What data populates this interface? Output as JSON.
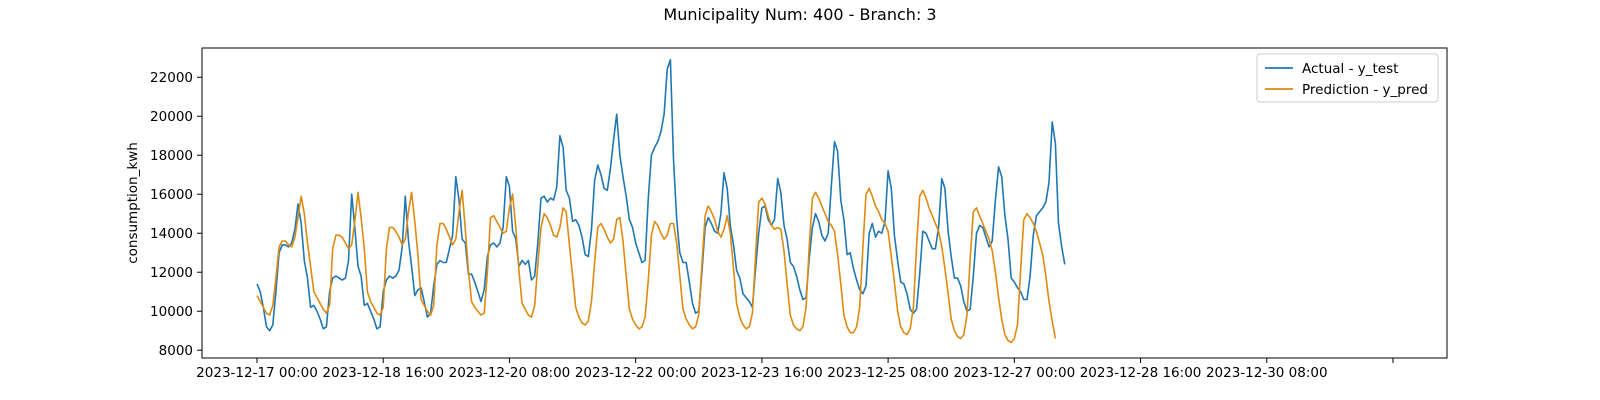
{
  "title": "Municipality Num: 400 - Branch: 3",
  "chart_data": {
    "type": "line",
    "title": "Municipality Num: 400 - Branch: 3",
    "xlabel": "",
    "ylabel": "consumption_kwh",
    "ylim": [
      7600,
      23500
    ],
    "yticks": [
      8000,
      10000,
      12000,
      14000,
      16000,
      18000,
      20000,
      22000
    ],
    "xticks": [
      "2023-12-17 00:00",
      "2023-12-18 16:00",
      "2023-12-20 08:00",
      "2023-12-22 00:00",
      "2023-12-23 16:00",
      "2023-12-25 08:00",
      "2023-12-27 00:00",
      "2023-12-28 16:00",
      "2023-12-30 08:00",
      ""
    ],
    "grid": false,
    "legend_position": "top-right",
    "x_step_hours": 2,
    "series": [
      {
        "name": "Actual - y_test",
        "color": "#1f77b4",
        "values": [
          11400,
          11000,
          10200,
          9200,
          9000,
          9300,
          11000,
          13000,
          13400,
          13400,
          13300,
          13500,
          14200,
          15500,
          14500,
          12600,
          11700,
          10200,
          10300,
          10000,
          9600,
          9100,
          9200,
          11000,
          11700,
          11800,
          11700,
          11600,
          11700,
          12600,
          16000,
          14300,
          12300,
          11800,
          10300,
          10400,
          10000,
          9600,
          9100,
          9200,
          11000,
          11600,
          11800,
          11700,
          11800,
          12100,
          13300,
          15900,
          13600,
          12300,
          10800,
          11100,
          11200,
          10500,
          9700,
          9900,
          11300,
          12400,
          12600,
          12500,
          12500,
          13200,
          13900,
          16900,
          15700,
          13700,
          13500,
          11900,
          11900,
          11500,
          11000,
          10500,
          11100,
          12800,
          13400,
          13500,
          13300,
          13500,
          14300,
          16900,
          16400,
          14100,
          13700,
          12300,
          12600,
          12400,
          12600,
          11600,
          11800,
          13500,
          15800,
          15900,
          15600,
          15800,
          15700,
          16400,
          19000,
          18400,
          16200,
          15800,
          14600,
          14700,
          14400,
          13800,
          12900,
          12800,
          14200,
          16700,
          17500,
          17000,
          16300,
          16200,
          17300,
          18800,
          20100,
          18000,
          16900,
          15900,
          14700,
          14300,
          13500,
          13000,
          12500,
          12600,
          15800,
          18000,
          18400,
          18700,
          19200,
          20100,
          22400,
          22900,
          17800,
          14700,
          13000,
          12500,
          12500,
          11500,
          10400,
          9900,
          10000,
          12000,
          14300,
          14800,
          14500,
          14100,
          14000,
          15000,
          17100,
          16300,
          14400,
          13400,
          12100,
          11700,
          10900,
          10700,
          10500,
          10200,
          12200,
          14000,
          15300,
          15400,
          14700,
          14400,
          14700,
          16800,
          16100,
          14400,
          13700,
          12500,
          12300,
          11800,
          11100,
          10600,
          10700,
          12700,
          14300,
          15000,
          14600,
          13900,
          13600,
          14000,
          16400,
          18700,
          18200,
          15700,
          14700,
          12900,
          13000,
          12200,
          11600,
          11100,
          10900,
          11300,
          14000,
          14500,
          13800,
          14100,
          14000,
          14600,
          17200,
          16300,
          13900,
          12600,
          11500,
          11400,
          10900,
          10100,
          9900,
          10100,
          11900,
          14100,
          14000,
          13600,
          13200,
          13200,
          14300,
          16800,
          16300,
          14100,
          12800,
          11700,
          11700,
          11300,
          10500,
          10000,
          10100,
          11800,
          14000,
          14400,
          14300,
          13800,
          13300,
          13600,
          15700,
          17400,
          16900,
          14900,
          13700,
          11700,
          11500,
          11200,
          11000,
          10600,
          10600,
          11800,
          13900,
          14900,
          15100,
          15300,
          15600,
          16600,
          19700,
          18600,
          14500,
          13300,
          12400
        ]
      },
      {
        "name": "Prediction - y_pred",
        "color": "#df8a10",
        "values": [
          10800,
          10500,
          10200,
          9900,
          9800,
          10300,
          11700,
          13300,
          13600,
          13600,
          13400,
          13300,
          13800,
          14800,
          15900,
          15000,
          13500,
          12300,
          11000,
          10700,
          10400,
          10100,
          9900,
          10300,
          13200,
          13900,
          13900,
          13800,
          13500,
          13200,
          13400,
          14600,
          16100,
          14800,
          13200,
          11000,
          10500,
          10200,
          9900,
          9800,
          10200,
          13200,
          14300,
          14300,
          14100,
          13800,
          13400,
          13700,
          15100,
          16100,
          14600,
          12900,
          10600,
          10300,
          10000,
          9800,
          10300,
          13400,
          14500,
          14500,
          14200,
          13800,
          13400,
          13700,
          15100,
          16200,
          14200,
          12100,
          10500,
          10200,
          10000,
          9800,
          9900,
          12000,
          14800,
          14900,
          14600,
          14300,
          14000,
          14100,
          15300,
          16000,
          14300,
          12100,
          10400,
          10100,
          9800,
          9700,
          10300,
          12400,
          14300,
          15000,
          14800,
          14400,
          13900,
          13800,
          14300,
          15300,
          15100,
          13400,
          11800,
          10200,
          9700,
          9400,
          9300,
          9500,
          10500,
          12500,
          14300,
          14500,
          14200,
          13800,
          13500,
          13700,
          14700,
          14800,
          13600,
          11800,
          10100,
          9600,
          9300,
          9100,
          9200,
          9700,
          11600,
          13900,
          14600,
          14400,
          14000,
          13700,
          13900,
          14500,
          14500,
          13500,
          11800,
          10100,
          9600,
          9300,
          9100,
          9200,
          9800,
          12400,
          14900,
          15400,
          15100,
          14700,
          14100,
          13800,
          14200,
          14900,
          14000,
          12200,
          10400,
          9700,
          9300,
          9100,
          9200,
          9900,
          12900,
          15600,
          15800,
          15500,
          14900,
          14400,
          14200,
          14300,
          14200,
          13100,
          11400,
          9800,
          9300,
          9100,
          9000,
          9200,
          10200,
          13300,
          15800,
          16100,
          15800,
          15400,
          15000,
          14600,
          14400,
          14100,
          12900,
          11400,
          9800,
          9200,
          8900,
          8900,
          9200,
          10200,
          13300,
          16000,
          16300,
          15900,
          15400,
          15100,
          14700,
          14500,
          14100,
          12800,
          11500,
          10000,
          9200,
          8900,
          8800,
          9100,
          10200,
          13300,
          15900,
          16200,
          15800,
          15300,
          14900,
          14500,
          14100,
          13300,
          12200,
          10900,
          9600,
          9000,
          8700,
          8600,
          8800,
          9800,
          12700,
          15100,
          15300,
          14900,
          14500,
          14100,
          13700,
          13100,
          12000,
          10700,
          9600,
          8800,
          8500,
          8400,
          8600,
          9300,
          12100,
          14700,
          15000,
          14800,
          14500,
          14100,
          13500,
          12900,
          11800,
          10500,
          9500,
          8600
        ]
      }
    ]
  }
}
